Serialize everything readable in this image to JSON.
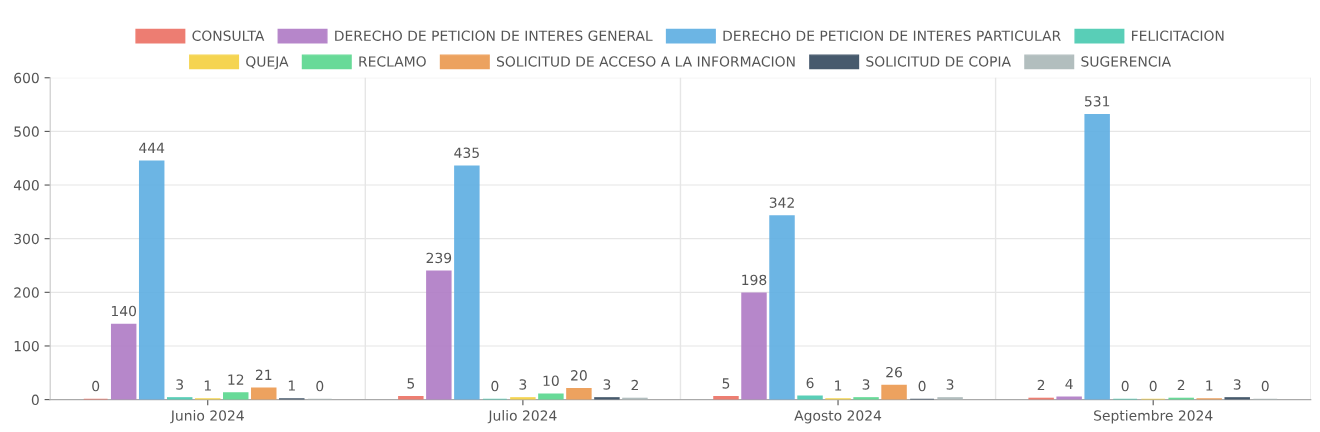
{
  "chart_data": {
    "type": "bar",
    "categories": [
      "Junio 2024",
      "Julio 2024",
      "Agosto 2024",
      "Septiembre 2024"
    ],
    "series": [
      {
        "name": "CONSULTA",
        "color": "#ec7063",
        "values": [
          0,
          5,
          5,
          2
        ]
      },
      {
        "name": "DERECHO DE PETICION DE INTERES GENERAL",
        "color": "#af7ac5",
        "values": [
          140,
          239,
          198,
          4
        ]
      },
      {
        "name": "DERECHO DE PETICION DE INTERES PARTICULAR",
        "color": "#5dade2",
        "values": [
          444,
          435,
          342,
          531
        ]
      },
      {
        "name": "FELICITACION",
        "color": "#48c9b0",
        "values": [
          3,
          0,
          6,
          0
        ]
      },
      {
        "name": "QUEJA",
        "color": "#f4d03f",
        "values": [
          1,
          3,
          1,
          0
        ]
      },
      {
        "name": "RECLAMO",
        "color": "#58d68d",
        "values": [
          12,
          10,
          3,
          2
        ]
      },
      {
        "name": "SOLICITUD DE ACCESO A LA INFORMACION",
        "color": "#eb984e",
        "values": [
          21,
          20,
          26,
          1
        ]
      },
      {
        "name": "SOLICITUD DE COPIA",
        "color": "#34495e",
        "values": [
          1,
          3,
          0,
          3
        ]
      },
      {
        "name": "SUGERENCIA",
        "color": "#aab7b8",
        "values": [
          0,
          2,
          3,
          0
        ]
      }
    ],
    "ylim": [
      0,
      600
    ],
    "yticks": [
      0,
      100,
      200,
      300,
      400,
      500,
      600
    ],
    "grid": true,
    "legend": "top",
    "data_labels": true
  }
}
